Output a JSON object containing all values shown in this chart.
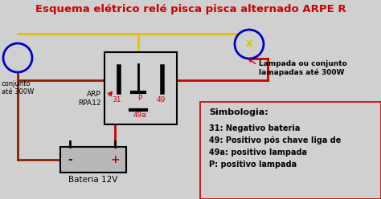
{
  "title": "Esquema elétrico relé pisca pisca alternado ARPE R",
  "title_color": "#cc0000",
  "bg_color": "#d0d0d0",
  "title_fontsize": 9.5,
  "legend_title": "Simbologia:",
  "legend_lines": [
    "31: Negativo bateria",
    "49: Positivo pós chave liga de",
    "49a: positivo lampada",
    "P: positivo lampada"
  ],
  "lampada_label": "Lampada ou conjunto\nlamapadas até 300W",
  "conjunto_label": "conjunto\naté 300W",
  "relay_label": "ARP\nRPA12",
  "battery_label": "Bateria 12V",
  "pin_31": "31",
  "pin_49": "49",
  "pin_49a": "49a",
  "pin_P": "P",
  "pin_X": "X",
  "color_red": "#cc0000",
  "color_brown": "#8b2000",
  "color_yellow": "#e8c000",
  "color_blue": "#0000cc",
  "color_black": "#000000",
  "color_white": "#ffffff",
  "color_gray": "#b8b8b8"
}
